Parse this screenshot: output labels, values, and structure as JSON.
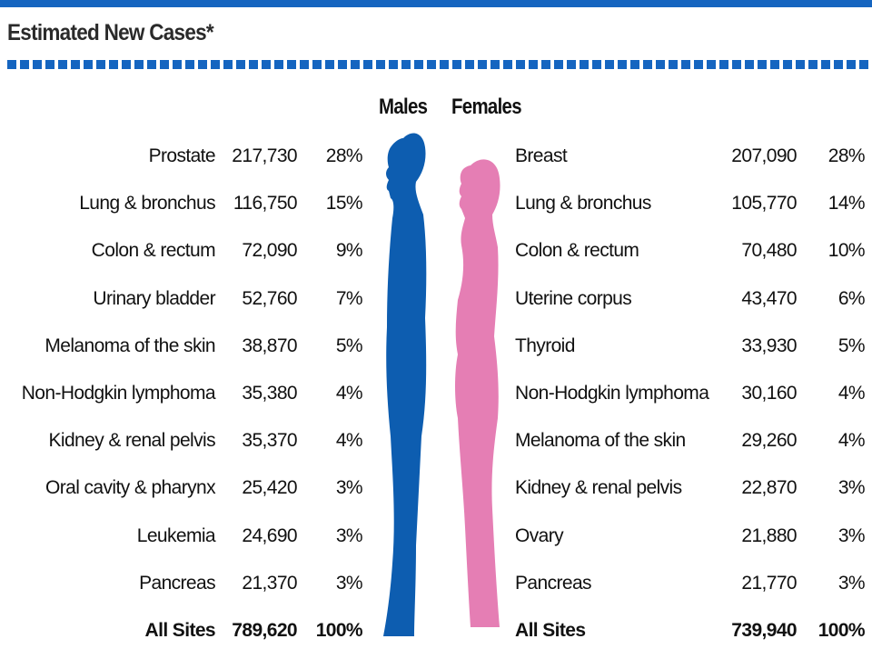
{
  "header": {
    "title": "Estimated New Cases*",
    "males_label": "Males",
    "females_label": "Females"
  },
  "colors": {
    "accent": "#1565c0",
    "male_figure": "#0d5db0",
    "female_figure": "#e57eb4"
  },
  "chart_data": {
    "type": "table",
    "title": "Estimated New Cases*",
    "columns": [
      "Males",
      "Females"
    ],
    "males": {
      "rows": [
        {
          "site": "Prostate",
          "cases": "217,730",
          "percent": "28%"
        },
        {
          "site": "Lung & bronchus",
          "cases": "116,750",
          "percent": "15%"
        },
        {
          "site": "Colon & rectum",
          "cases": "72,090",
          "percent": "9%"
        },
        {
          "site": "Urinary bladder",
          "cases": "52,760",
          "percent": "7%"
        },
        {
          "site": "Melanoma of the skin",
          "cases": "38,870",
          "percent": "5%"
        },
        {
          "site": "Non-Hodgkin lymphoma",
          "cases": "35,380",
          "percent": "4%"
        },
        {
          "site": "Kidney & renal pelvis",
          "cases": "35,370",
          "percent": "4%"
        },
        {
          "site": "Oral cavity & pharynx",
          "cases": "25,420",
          "percent": "3%"
        },
        {
          "site": "Leukemia",
          "cases": "24,690",
          "percent": "3%"
        },
        {
          "site": "Pancreas",
          "cases": "21,370",
          "percent": "3%"
        }
      ],
      "total": {
        "site": "All Sites",
        "cases": "789,620",
        "percent": "100%"
      }
    },
    "females": {
      "rows": [
        {
          "site": "Breast",
          "cases": "207,090",
          "percent": "28%"
        },
        {
          "site": "Lung & bronchus",
          "cases": "105,770",
          "percent": "14%"
        },
        {
          "site": "Colon & rectum",
          "cases": "70,480",
          "percent": "10%"
        },
        {
          "site": "Uterine corpus",
          "cases": "43,470",
          "percent": "6%"
        },
        {
          "site": "Thyroid",
          "cases": "33,930",
          "percent": "5%"
        },
        {
          "site": "Non-Hodgkin lymphoma",
          "cases": "30,160",
          "percent": "4%"
        },
        {
          "site": "Melanoma of the skin",
          "cases": "29,260",
          "percent": "4%"
        },
        {
          "site": "Kidney & renal pelvis",
          "cases": "22,870",
          "percent": "3%"
        },
        {
          "site": "Ovary",
          "cases": "21,880",
          "percent": "3%"
        },
        {
          "site": "Pancreas",
          "cases": "21,770",
          "percent": "3%"
        }
      ],
      "total": {
        "site": "All Sites",
        "cases": "739,940",
        "percent": "100%"
      }
    }
  }
}
